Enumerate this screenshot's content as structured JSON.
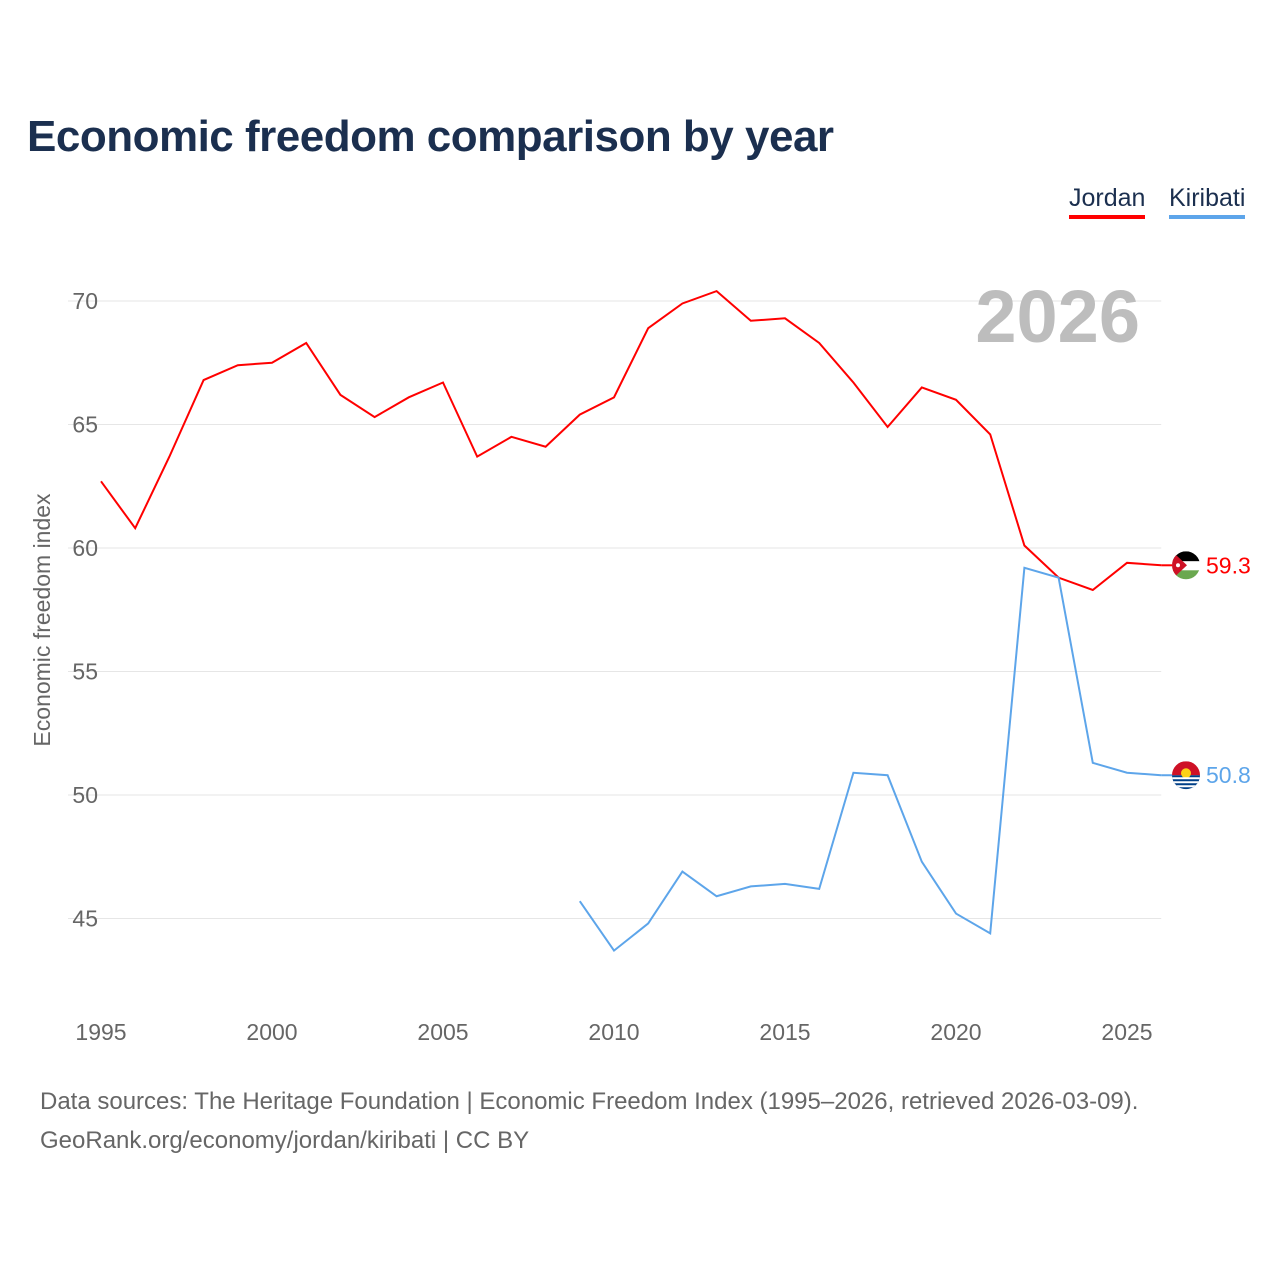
{
  "chart_data": {
    "type": "line",
    "title": "Economic freedom comparison by year",
    "xlabel": "",
    "ylabel": "Economic freedom index",
    "xlim": [
      1995,
      2026
    ],
    "ylim": [
      41.3,
      71.7
    ],
    "x_ticks": [
      1995,
      2000,
      2005,
      2010,
      2015,
      2020,
      2025
    ],
    "y_ticks": [
      45,
      50,
      55,
      60,
      65,
      70
    ],
    "grid": true,
    "legend_placement": "top-right",
    "year_watermark": "2026",
    "series": [
      {
        "name": "Jordan",
        "color": "#ff0000",
        "end_label": "59.3",
        "x": [
          1995,
          1996,
          1997,
          1998,
          1999,
          2000,
          2001,
          2002,
          2003,
          2004,
          2005,
          2006,
          2007,
          2008,
          2009,
          2010,
          2011,
          2012,
          2013,
          2014,
          2015,
          2016,
          2017,
          2018,
          2019,
          2020,
          2021,
          2022,
          2023,
          2024,
          2025,
          2026
        ],
        "values": [
          62.7,
          60.8,
          63.7,
          66.8,
          67.4,
          67.5,
          68.3,
          66.2,
          65.3,
          66.1,
          66.7,
          63.7,
          64.5,
          64.1,
          65.4,
          66.1,
          68.9,
          69.9,
          70.4,
          69.2,
          69.3,
          68.3,
          66.7,
          64.9,
          66.5,
          66.0,
          64.6,
          60.1,
          58.8,
          58.3,
          59.4,
          59.3
        ]
      },
      {
        "name": "Kiribati",
        "color": "#5da5ea",
        "end_label": "50.8",
        "x": [
          2009,
          2010,
          2011,
          2012,
          2013,
          2014,
          2015,
          2016,
          2017,
          2018,
          2019,
          2020,
          2021,
          2022,
          2023,
          2024,
          2025,
          2026
        ],
        "values": [
          45.7,
          43.7,
          44.8,
          46.9,
          45.9,
          46.3,
          46.4,
          46.2,
          50.9,
          50.8,
          47.3,
          45.2,
          44.4,
          59.2,
          58.8,
          51.3,
          50.9,
          50.8
        ]
      }
    ]
  },
  "footer": {
    "sources": "Data sources: The Heritage Foundation | Economic Freedom Index (1995–2026, retrieved 2026-03-09).",
    "license": "GeoRank.org/economy/jordan/kiribati | CC BY"
  }
}
